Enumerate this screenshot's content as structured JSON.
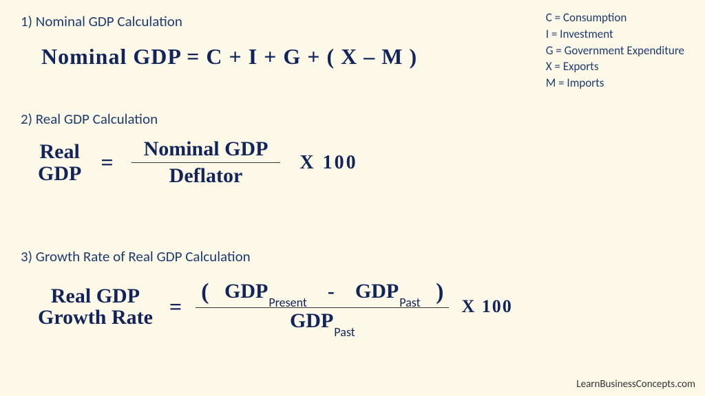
{
  "background_color": "#fdf9e8",
  "heading_color": "#1f3a6f",
  "formula_color": "#12245a",
  "section1": {
    "title": "1) Nominal GDP Calculation",
    "formula": "Nominal GDP = C + I + G + ( X – M )"
  },
  "legend": {
    "c": "C = Consumption",
    "i": "I = Investment",
    "g": "G = Government Expenditure",
    "x": "X = Exports",
    "m": "M = Imports"
  },
  "section2": {
    "title": "2) Real GDP Calculation",
    "lhs_line1": "Real",
    "lhs_line2": "GDP",
    "eq": "=",
    "numerator": "Nominal GDP",
    "denominator": "Deflator",
    "times": "X  100"
  },
  "section3": {
    "title": "3) Growth Rate of Real GDP Calculation",
    "lhs_line1": "Real GDP",
    "lhs_line2": "Growth Rate",
    "eq": "=",
    "num_open": "(",
    "num_term1_base": "GDP",
    "num_term1_sub": "Present",
    "num_minus": "-",
    "num_term2_base": "GDP",
    "num_term2_sub": "Past",
    "num_close": ")",
    "den_base": "GDP",
    "den_sub": "Past",
    "times": "X 100"
  },
  "attribution": "LearnBusinessConcepts.com"
}
